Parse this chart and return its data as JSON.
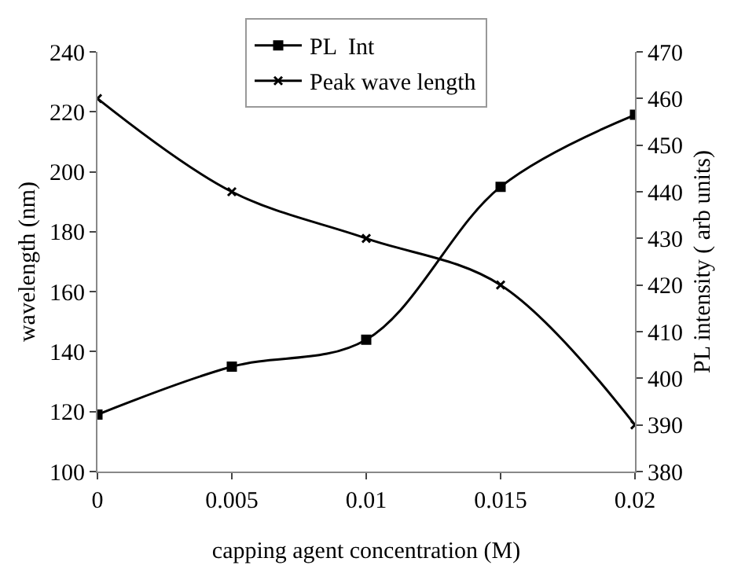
{
  "chart_data": {
    "type": "line",
    "xlabel": "capping agent concentration (M)",
    "ylabel": "wavelength (nm)",
    "y2label": "PL intensity ( arb units)",
    "x": [
      0,
      0.005,
      0.01,
      0.015,
      0.02
    ],
    "series": [
      {
        "name": "PL  Int",
        "color": "#000000",
        "marker": "square",
        "values": [
          119,
          135,
          144,
          195,
          219
        ]
      },
      {
        "name": "Peak wave length",
        "color": "#000000",
        "marker": "cross",
        "axis": "y2",
        "values": [
          460,
          440,
          430,
          420,
          390
        ]
      }
    ],
    "xlim": [
      0,
      0.02
    ],
    "xticks": [
      0,
      0.005,
      0.01,
      0.015,
      0.02
    ],
    "ylim": [
      100,
      240
    ],
    "yticks": [
      100,
      120,
      140,
      160,
      180,
      200,
      220,
      240
    ],
    "y2lim": [
      380,
      470
    ],
    "y2ticks": [
      380,
      390,
      400,
      410,
      420,
      430,
      440,
      450,
      460,
      470
    ],
    "grid": false,
    "legend": "top",
    "line_style": "solid"
  }
}
